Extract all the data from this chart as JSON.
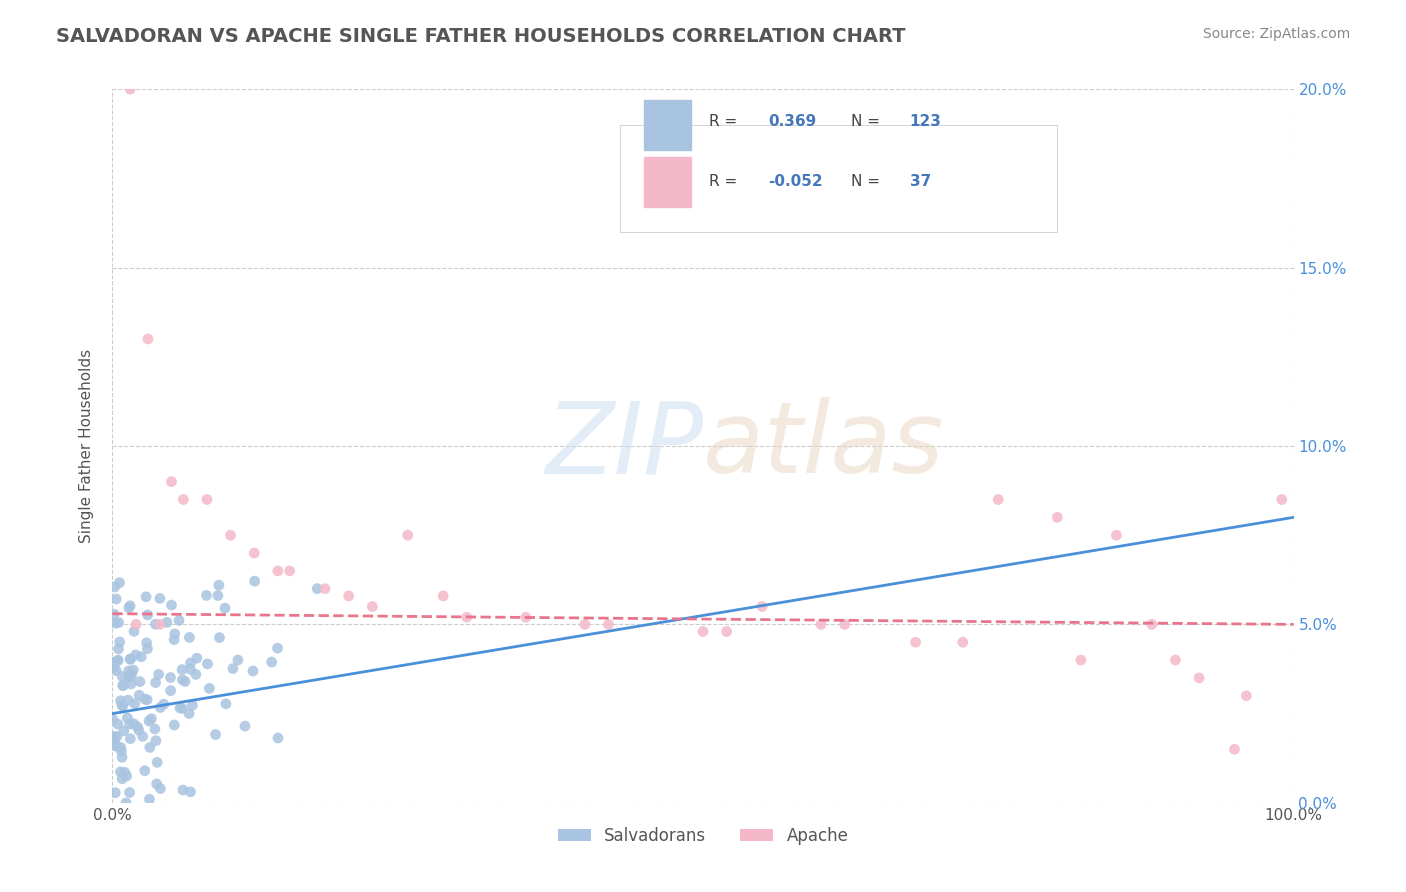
{
  "title": "SALVADORAN VS APACHE SINGLE FATHER HOUSEHOLDS CORRELATION CHART",
  "source_text": "Source: ZipAtlas.com",
  "xlabel": "",
  "ylabel": "Single Father Households",
  "xlim": [
    0,
    100
  ],
  "ylim": [
    0,
    20
  ],
  "xtick_labels": [
    "0.0%",
    "100.0%"
  ],
  "ytick_labels": [
    "0.0%",
    "5.0%",
    "10.0%",
    "15.0%",
    "20.0%"
  ],
  "ytick_values": [
    0,
    5,
    10,
    15,
    20
  ],
  "legend_labels": [
    "Salvadorans",
    "Apache"
  ],
  "salvadoran_R": 0.369,
  "salvadoran_N": 123,
  "apache_R": -0.052,
  "apache_N": 37,
  "blue_color": "#a8c4e0",
  "pink_color": "#f4b8c8",
  "blue_line_color": "#4a90d9",
  "pink_line_color": "#e8758a",
  "title_color": "#555555",
  "source_color": "#888888",
  "watermark_color_zip": "#c8d8e8",
  "watermark_color_atlas": "#d8c8b8",
  "background_color": "#ffffff",
  "grid_color": "#cccccc",
  "legend_R_color": "#4477bb",
  "legend_N_color": "#4477bb"
}
